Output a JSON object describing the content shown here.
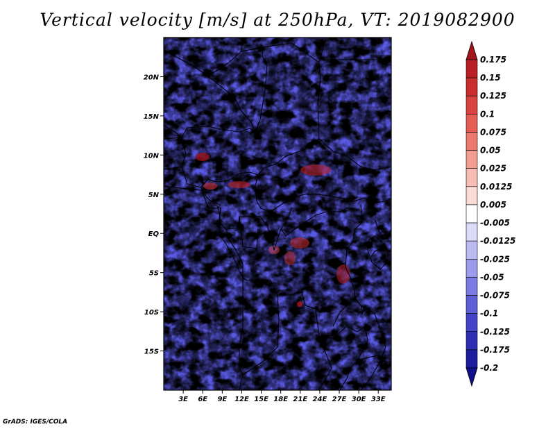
{
  "title": "Vertical velocity [m/s] at 250hPa, VT: 2019082900",
  "credit": "GrADS: IGES/COLA",
  "map": {
    "lon_range": [
      0,
      35
    ],
    "lat_range": [
      -20,
      25
    ],
    "lat_ticks": [
      "20N",
      "15N",
      "10N",
      "5N",
      "EQ",
      "5S",
      "10S",
      "15S"
    ],
    "lon_ticks": [
      "3E",
      "6E",
      "9E",
      "12E",
      "15E",
      "18E",
      "21E",
      "24E",
      "27E",
      "30E",
      "33E"
    ],
    "field_description_colors": {
      "positive": "#e8504f",
      "negative": "#5a5ae6",
      "neutral": "#f6f2f8"
    }
  },
  "colorbar": {
    "levels": [
      "0.175",
      "0.15",
      "0.125",
      "0.1",
      "0.075",
      "0.05",
      "0.025",
      "0.0125",
      "0.005",
      "-0.005",
      "-0.0125",
      "-0.025",
      "-0.05",
      "-0.075",
      "-0.1",
      "-0.125",
      "-0.175",
      "-0.2"
    ],
    "colors": [
      "#a6141c",
      "#b81e24",
      "#c92d2e",
      "#d8443f",
      "#e35d55",
      "#ec7a70",
      "#f39c91",
      "#f8bdb4",
      "#fcdcd6",
      "#ffffff",
      "#dcdcf8",
      "#bcbcf2",
      "#9c9cec",
      "#7c7ce4",
      "#5e5ed8",
      "#4444c8",
      "#2e2eb4",
      "#1c1c9c",
      "#10108a"
    ]
  }
}
